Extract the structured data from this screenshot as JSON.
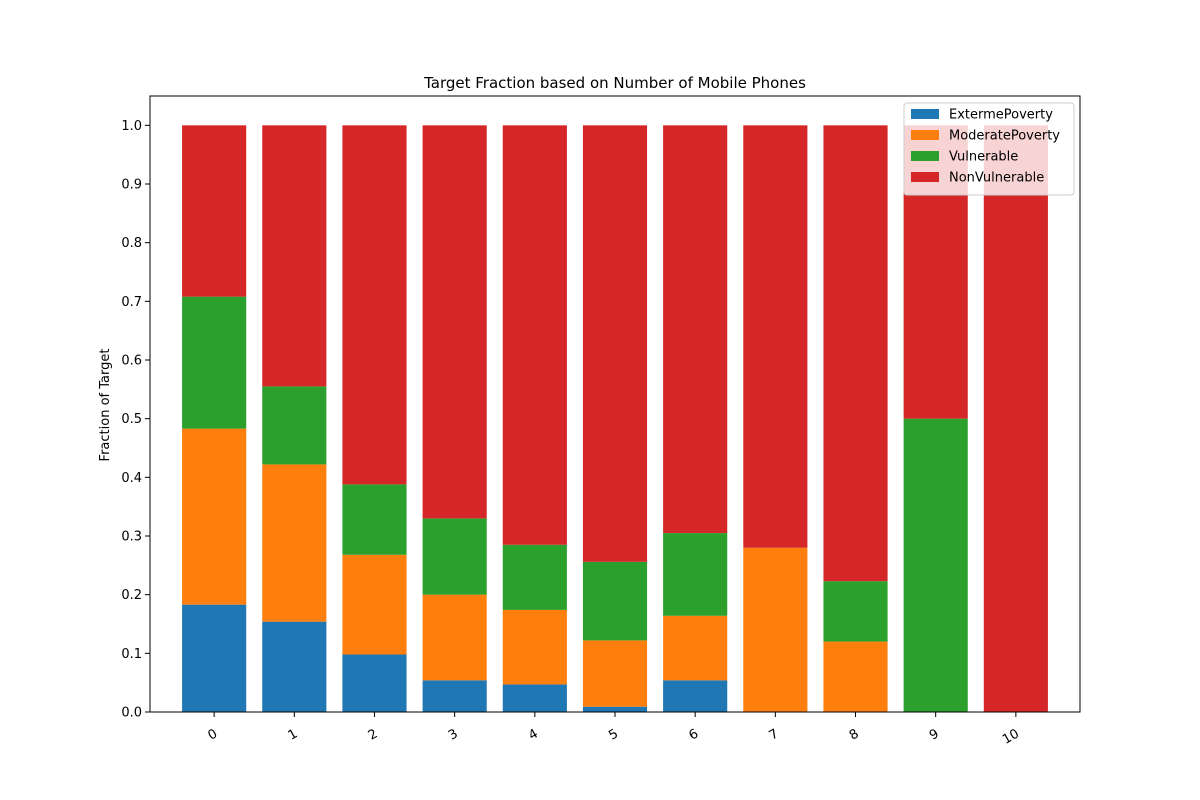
{
  "chart_data": {
    "type": "bar",
    "stacked": true,
    "title": "Target Fraction based on Number of Mobile Phones",
    "xlabel": "",
    "ylabel": "Fraction of Target",
    "ylim": [
      0,
      1.05
    ],
    "yticks": [
      "0.0",
      "0.1",
      "0.2",
      "0.3",
      "0.4",
      "0.5",
      "0.6",
      "0.7",
      "0.8",
      "0.9",
      "1.0"
    ],
    "categories": [
      "0",
      "1",
      "2",
      "3",
      "4",
      "5",
      "6",
      "7",
      "8",
      "9",
      "10"
    ],
    "series": [
      {
        "name": "ExtermePoverty",
        "color": "#1f77b4",
        "values": [
          0.183,
          0.154,
          0.098,
          0.054,
          0.047,
          0.009,
          0.054,
          0.0,
          0.0,
          0.0,
          0.0
        ]
      },
      {
        "name": "ModeratePoverty",
        "color": "#ff7f0e",
        "values": [
          0.3,
          0.268,
          0.17,
          0.146,
          0.127,
          0.113,
          0.11,
          0.28,
          0.12,
          0.0,
          0.0
        ]
      },
      {
        "name": "Vulnerable",
        "color": "#2ca02c",
        "values": [
          0.225,
          0.133,
          0.12,
          0.13,
          0.111,
          0.134,
          0.141,
          0.0,
          0.103,
          0.5,
          0.0
        ]
      },
      {
        "name": "NonVulnerable",
        "color": "#d62728",
        "values": [
          0.292,
          0.445,
          0.612,
          0.67,
          0.715,
          0.744,
          0.695,
          0.72,
          0.777,
          0.5,
          1.0
        ]
      }
    ],
    "grid": false,
    "legend": "top-right"
  }
}
